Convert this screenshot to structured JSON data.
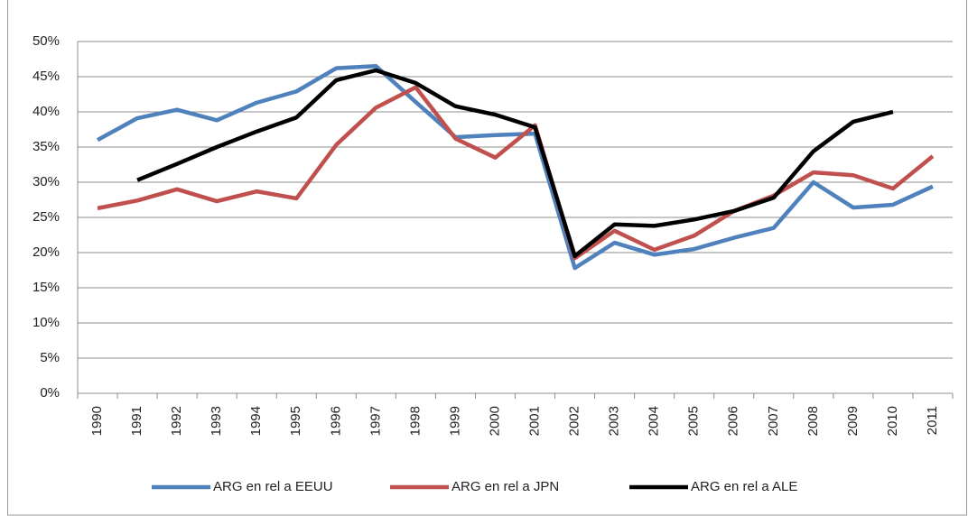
{
  "chart_data": {
    "type": "line",
    "categories": [
      "1990",
      "1991",
      "1992",
      "1993",
      "1994",
      "1995",
      "1996",
      "1997",
      "1998",
      "1999",
      "2000",
      "2001",
      "2002",
      "2003",
      "2004",
      "2005",
      "2006",
      "2007",
      "2008",
      "2009",
      "2010",
      "2011"
    ],
    "series": [
      {
        "name": "ARG en rel a EEUU",
        "color": "#4f81bd",
        "values": [
          36.0,
          39.1,
          40.3,
          38.8,
          41.3,
          42.9,
          46.2,
          46.5,
          41.4,
          36.4,
          36.7,
          36.9,
          17.8,
          21.4,
          19.7,
          20.5,
          22.1,
          23.5,
          30.0,
          26.4,
          26.8,
          29.4
        ]
      },
      {
        "name": "ARG en rel a JPN",
        "color": "#c0504d",
        "values": [
          26.3,
          27.4,
          29.0,
          27.3,
          28.7,
          27.7,
          35.3,
          40.6,
          43.5,
          36.2,
          33.5,
          38.1,
          19.2,
          23.1,
          20.4,
          22.4,
          25.9,
          28.1,
          31.4,
          31.0,
          29.1,
          33.7
        ]
      },
      {
        "name": "ARG en rel a ALE",
        "color": "#000000",
        "values": [
          null,
          30.3,
          32.6,
          35.0,
          37.2,
          39.2,
          44.5,
          45.9,
          44.1,
          40.8,
          39.6,
          37.8,
          19.5,
          24.0,
          23.8,
          24.7,
          25.9,
          27.8,
          34.4,
          38.6,
          40.0,
          null
        ]
      }
    ],
    "ylim": [
      0,
      50
    ],
    "yticks": [
      {
        "value": 0,
        "label": "0%"
      },
      {
        "value": 5,
        "label": "5%"
      },
      {
        "value": 10,
        "label": "10%"
      },
      {
        "value": 15,
        "label": "15%"
      },
      {
        "value": 20,
        "label": "20%"
      },
      {
        "value": 25,
        "label": "25%"
      },
      {
        "value": 30,
        "label": "30%"
      },
      {
        "value": 35,
        "label": "35%"
      },
      {
        "value": 40,
        "label": "40%"
      },
      {
        "value": 45,
        "label": "45%"
      },
      {
        "value": 50,
        "label": "50%"
      }
    ],
    "grid": true,
    "legend": "bottom"
  }
}
